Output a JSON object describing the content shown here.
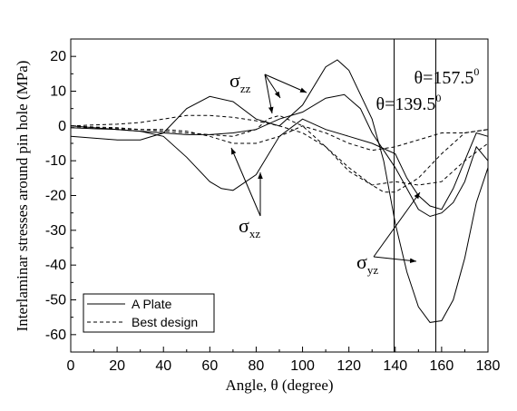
{
  "chart_data": {
    "type": "line",
    "title": "",
    "xlabel": "Angle, θ (degree)",
    "ylabel": "Interlaminar stresses around pin hole (MPa)",
    "xlim": [
      0,
      180
    ],
    "ylim": [
      -65,
      25
    ],
    "x_ticks": [
      0,
      20,
      40,
      60,
      80,
      100,
      120,
      140,
      160,
      180
    ],
    "y_ticks": [
      20,
      10,
      0,
      -10,
      -20,
      -30,
      -40,
      -50,
      -60
    ],
    "grid": false,
    "legend": {
      "position": "bottom-left",
      "entries": [
        {
          "label": "A Plate",
          "style": "solid"
        },
        {
          "label": "Best design",
          "style": "dashed"
        }
      ]
    },
    "series": [
      {
        "style": "solid",
        "x": [
          0,
          10,
          20,
          30,
          40,
          50,
          60,
          70,
          80,
          90,
          100,
          110,
          115,
          120,
          130,
          135,
          140,
          145,
          150,
          155,
          160,
          165,
          170,
          175,
          180
        ],
        "y": [
          -3,
          -3.5,
          -4,
          -4,
          -2,
          5,
          8.5,
          7,
          2,
          0,
          6,
          17,
          19,
          16,
          2,
          -10,
          -28,
          -42,
          -52,
          -56.5,
          -56,
          -50,
          -38,
          -22,
          -12
        ]
      },
      {
        "style": "solid",
        "x": [
          0,
          10,
          20,
          30,
          40,
          50,
          60,
          65,
          70,
          80,
          90,
          100,
          110,
          120,
          130,
          140,
          145,
          150,
          155,
          160,
          165,
          170,
          175,
          180
        ],
        "y": [
          0,
          -0.5,
          -1,
          -1.5,
          -3,
          -9,
          -16,
          -18,
          -18.5,
          -14,
          -3,
          2,
          -1,
          -3,
          -5,
          -8,
          -15,
          -20,
          -23,
          -24,
          -18,
          -10,
          -2,
          -3
        ]
      },
      {
        "style": "solid",
        "x": [
          0,
          10,
          20,
          30,
          40,
          50,
          60,
          70,
          80,
          90,
          100,
          110,
          118,
          125,
          130,
          135,
          140,
          145,
          150,
          155,
          160,
          165,
          170,
          175,
          180
        ],
        "y": [
          -0.5,
          -0.8,
          -1,
          -1.5,
          -2,
          -2.5,
          -2.5,
          -2,
          -1,
          2,
          4,
          8,
          9,
          5,
          -2,
          -7,
          -12,
          -18,
          -24,
          -26,
          -25,
          -22,
          -16,
          -6,
          -10
        ]
      },
      {
        "style": "dashed",
        "x": [
          0,
          10,
          20,
          30,
          40,
          50,
          60,
          70,
          80,
          90,
          100,
          110,
          120,
          130,
          135,
          140,
          150,
          160,
          170,
          180
        ],
        "y": [
          0,
          0.3,
          0.5,
          1,
          2,
          3,
          3,
          2.5,
          1.5,
          0,
          -2,
          -6,
          -12,
          -17,
          -19,
          -19,
          -15,
          -8,
          -2,
          -1
        ]
      },
      {
        "style": "dashed",
        "x": [
          0,
          10,
          20,
          30,
          40,
          50,
          60,
          70,
          80,
          90,
          100,
          110,
          120,
          130,
          140,
          150,
          160,
          170,
          180
        ],
        "y": [
          -0.5,
          -0.5,
          -0.8,
          -1,
          -1,
          -1.5,
          -3,
          -5,
          -5,
          -3,
          0,
          -2,
          -5,
          -7,
          -6,
          -4,
          -2,
          -2,
          -1
        ]
      },
      {
        "style": "dashed",
        "x": [
          0,
          10,
          20,
          30,
          40,
          50,
          60,
          70,
          80,
          85,
          90,
          100,
          110,
          120,
          130,
          140,
          150,
          160,
          170,
          180
        ],
        "y": [
          0,
          -0.3,
          -0.5,
          -1,
          -1.5,
          -2,
          -2.5,
          -3,
          -1,
          2,
          3,
          0,
          -6,
          -13,
          -17,
          -16,
          -17,
          -16,
          -10,
          -5
        ]
      }
    ],
    "vertical_lines": [
      {
        "x": 139.5,
        "label_prefix": "θ=",
        "label_value": "139.5",
        "label_sup": "0"
      },
      {
        "x": 157.5,
        "label_prefix": "θ=",
        "label_value": "157.5",
        "label_sup": "0"
      }
    ],
    "annotations": [
      {
        "name": "sigma-zz",
        "symbol": "σ",
        "sub": "zz"
      },
      {
        "name": "sigma-xz",
        "symbol": "σ",
        "sub": "xz"
      },
      {
        "name": "sigma-yz",
        "symbol": "σ",
        "sub": "yz"
      }
    ]
  }
}
